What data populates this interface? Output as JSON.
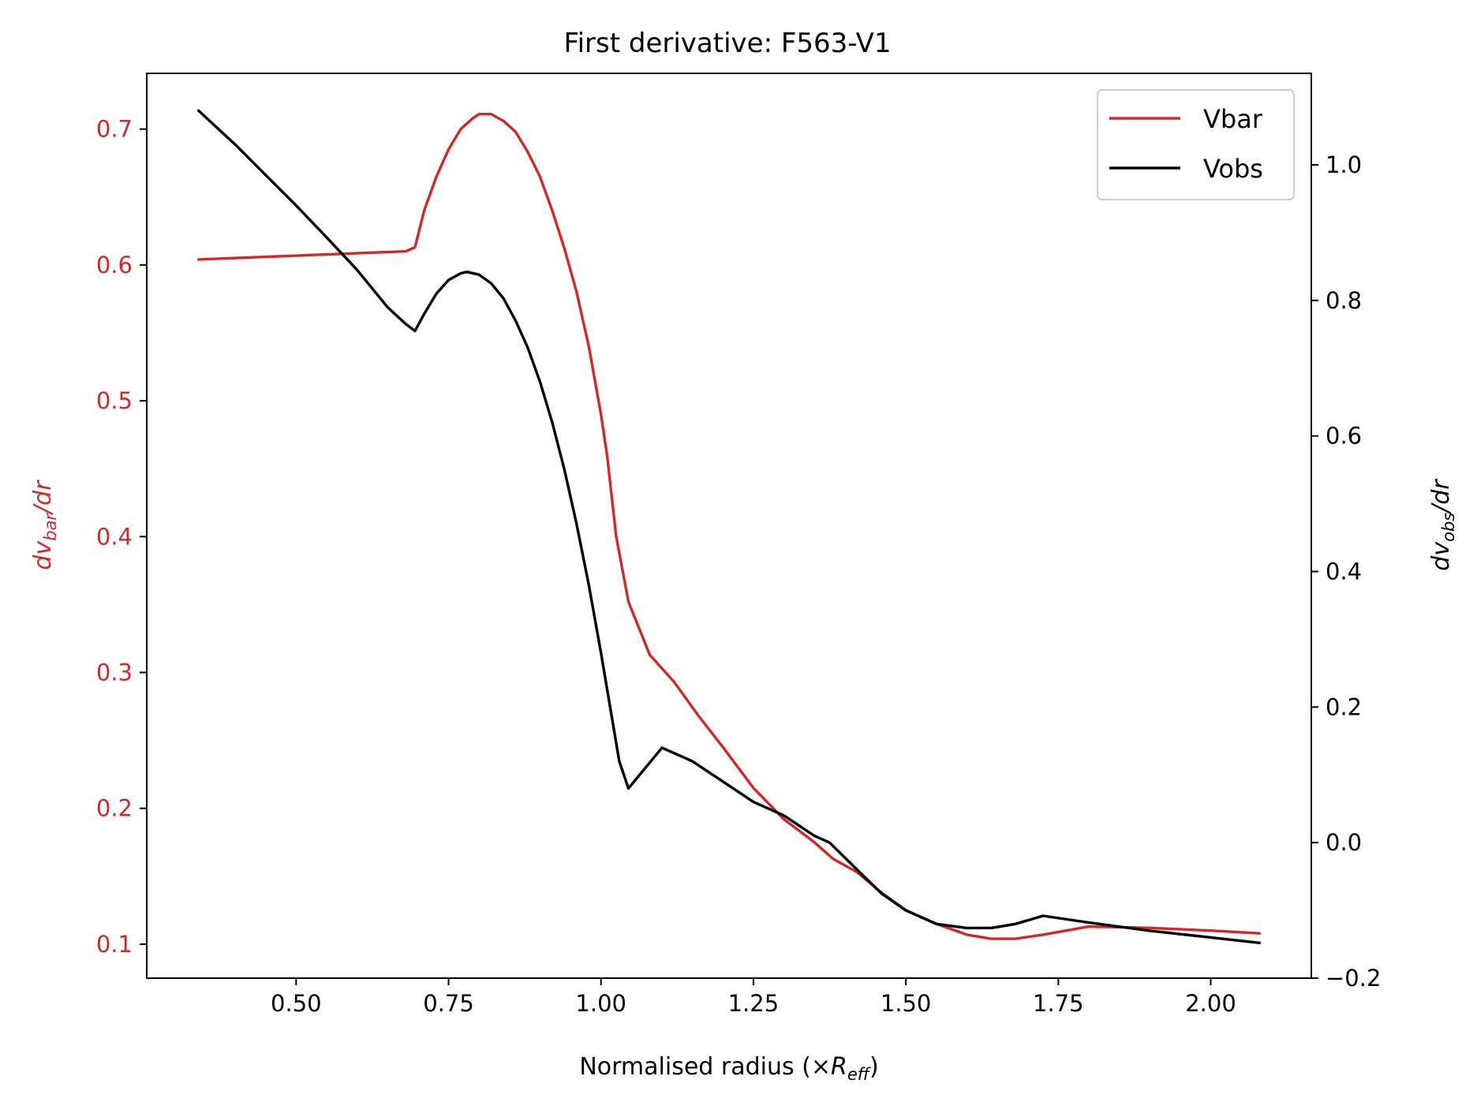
{
  "chart_data": {
    "type": "line",
    "title": "First derivative: F563-V1",
    "xlabel": {
      "prefix": "Normalised radius (×",
      "var": "R",
      "sub": "eff",
      "suffix": ")"
    },
    "ylabel_left": {
      "d": "dv",
      "sub": "bar",
      "rest": "/dr"
    },
    "ylabel_right": {
      "d": "dv",
      "sub": "obs",
      "rest": "/dr"
    },
    "xlim": [
      0.255,
      2.165
    ],
    "ylim_left": [
      0.075,
      0.741
    ],
    "ylim_right": [
      -0.2,
      1.135
    ],
    "x_ticks": [
      "0.50",
      "0.75",
      "1.00",
      "1.25",
      "1.50",
      "1.75",
      "2.00"
    ],
    "y_left_ticks": [
      "0.1",
      "0.2",
      "0.3",
      "0.4",
      "0.5",
      "0.6",
      "0.7"
    ],
    "y_right_ticks": [
      "−0.2",
      "0.0",
      "0.2",
      "0.4",
      "0.6",
      "0.8",
      "1.0"
    ],
    "legend_position": "top-right",
    "colors": {
      "vbar": "#d62728",
      "vobs": "#000000",
      "left_axis": "#d62728"
    },
    "series": [
      {
        "name": "Vbar",
        "axis": "left",
        "color": "#d62728",
        "x": [
          0.34,
          0.68,
          0.695,
          0.71,
          0.73,
          0.75,
          0.77,
          0.79,
          0.8,
          0.82,
          0.84,
          0.86,
          0.88,
          0.9,
          0.92,
          0.94,
          0.96,
          0.98,
          1.0,
          1.01,
          1.025,
          1.045,
          1.08,
          1.12,
          1.16,
          1.2,
          1.25,
          1.3,
          1.35,
          1.38,
          1.42,
          1.46,
          1.5,
          1.55,
          1.6,
          1.64,
          1.68,
          1.725,
          1.8,
          1.9,
          2.0,
          2.08
        ],
        "y": [
          0.604,
          0.61,
          0.613,
          0.64,
          0.665,
          0.685,
          0.7,
          0.708,
          0.711,
          0.711,
          0.706,
          0.698,
          0.683,
          0.665,
          0.64,
          0.612,
          0.58,
          0.54,
          0.49,
          0.46,
          0.4,
          0.352,
          0.313,
          0.293,
          0.268,
          0.245,
          0.215,
          0.192,
          0.175,
          0.163,
          0.153,
          0.138,
          0.125,
          0.115,
          0.107,
          0.104,
          0.104,
          0.107,
          0.113,
          0.112,
          0.11,
          0.108
        ]
      },
      {
        "name": "Vobs",
        "axis": "right",
        "color": "#000000",
        "x": [
          0.34,
          0.4,
          0.45,
          0.5,
          0.55,
          0.6,
          0.65,
          0.68,
          0.695,
          0.71,
          0.73,
          0.75,
          0.77,
          0.78,
          0.8,
          0.82,
          0.84,
          0.86,
          0.88,
          0.9,
          0.92,
          0.94,
          0.96,
          0.98,
          1.0,
          1.015,
          1.03,
          1.045,
          1.1,
          1.15,
          1.2,
          1.25,
          1.3,
          1.35,
          1.375,
          1.42,
          1.46,
          1.5,
          1.55,
          1.6,
          1.64,
          1.68,
          1.725,
          1.8,
          1.9,
          2.0,
          2.08
        ],
        "y": [
          1.08,
          1.03,
          0.985,
          0.94,
          0.893,
          0.845,
          0.79,
          0.765,
          0.755,
          0.78,
          0.81,
          0.83,
          0.84,
          0.842,
          0.838,
          0.825,
          0.803,
          0.77,
          0.73,
          0.68,
          0.62,
          0.55,
          0.47,
          0.38,
          0.28,
          0.2,
          0.12,
          0.08,
          0.14,
          0.12,
          0.09,
          0.06,
          0.04,
          0.01,
          0.0,
          -0.04,
          -0.075,
          -0.1,
          -0.12,
          -0.126,
          -0.126,
          -0.12,
          -0.108,
          -0.118,
          -0.13,
          -0.14,
          -0.148
        ]
      }
    ]
  }
}
